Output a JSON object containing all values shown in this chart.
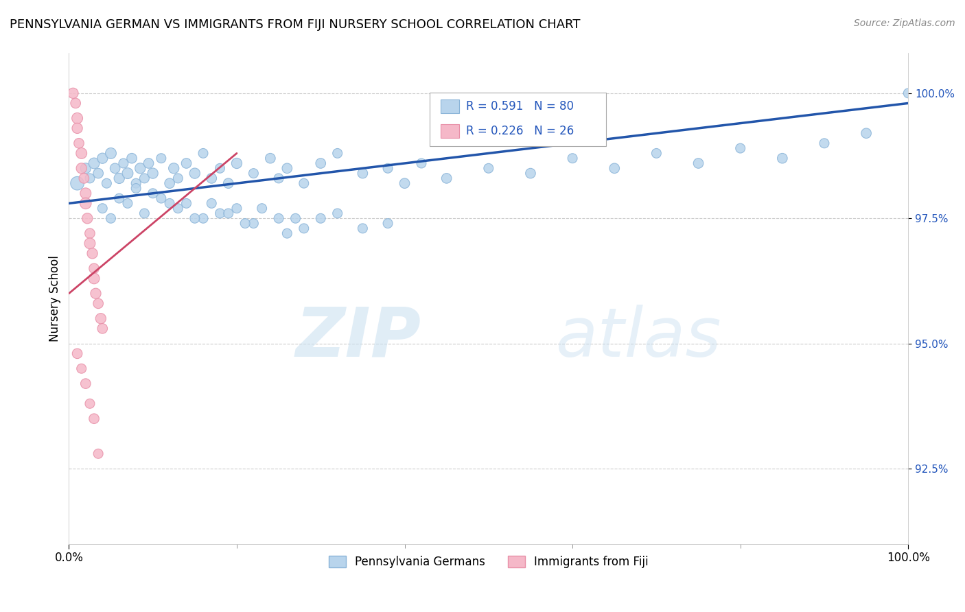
{
  "title": "PENNSYLVANIA GERMAN VS IMMIGRANTS FROM FIJI NURSERY SCHOOL CORRELATION CHART",
  "source": "Source: ZipAtlas.com",
  "ylabel": "Nursery School",
  "xmin": 0.0,
  "xmax": 100.0,
  "ymin": 91.0,
  "ymax": 100.8,
  "yticks": [
    92.5,
    95.0,
    97.5,
    100.0
  ],
  "ytick_labels": [
    "92.5%",
    "95.0%",
    "97.5%",
    "100.0%"
  ],
  "xtick_labels": [
    "0.0%",
    "100.0%"
  ],
  "blue_color": "#b8d4ec",
  "blue_edge": "#8ab4d8",
  "pink_color": "#f5b8c8",
  "pink_edge": "#e890a8",
  "trend_blue": "#2255aa",
  "trend_pink": "#cc4466",
  "R_blue": 0.591,
  "N_blue": 80,
  "R_pink": 0.226,
  "N_pink": 26,
  "blue_points_x": [
    1.0,
    2.0,
    2.5,
    3.0,
    3.5,
    4.0,
    4.5,
    5.0,
    5.5,
    6.0,
    6.5,
    7.0,
    7.5,
    8.0,
    8.5,
    9.0,
    9.5,
    10.0,
    11.0,
    12.0,
    12.5,
    13.0,
    14.0,
    15.0,
    16.0,
    17.0,
    18.0,
    19.0,
    20.0,
    22.0,
    24.0,
    25.0,
    26.0,
    28.0,
    30.0,
    32.0,
    35.0,
    38.0,
    40.0,
    42.0,
    45.0,
    50.0,
    55.0,
    60.0,
    65.0,
    70.0,
    75.0,
    80.0,
    85.0,
    90.0,
    95.0,
    100.0,
    14.0,
    16.0,
    18.0,
    22.0,
    26.0,
    30.0,
    35.0,
    20.0,
    25.0,
    28.0,
    32.0,
    38.0,
    10.0,
    12.0,
    8.0,
    6.0,
    4.0,
    5.0,
    7.0,
    9.0,
    11.0,
    13.0,
    15.0,
    17.0,
    19.0,
    21.0,
    23.0,
    27.0
  ],
  "blue_points_y": [
    98.2,
    98.5,
    98.3,
    98.6,
    98.4,
    98.7,
    98.2,
    98.8,
    98.5,
    98.3,
    98.6,
    98.4,
    98.7,
    98.2,
    98.5,
    98.3,
    98.6,
    98.4,
    98.7,
    98.2,
    98.5,
    98.3,
    98.6,
    98.4,
    98.8,
    98.3,
    98.5,
    98.2,
    98.6,
    98.4,
    98.7,
    98.3,
    98.5,
    98.2,
    98.6,
    98.8,
    98.4,
    98.5,
    98.2,
    98.6,
    98.3,
    98.5,
    98.4,
    98.7,
    98.5,
    98.8,
    98.6,
    98.9,
    98.7,
    99.0,
    99.2,
    100.0,
    97.8,
    97.5,
    97.6,
    97.4,
    97.2,
    97.5,
    97.3,
    97.7,
    97.5,
    97.3,
    97.6,
    97.4,
    98.0,
    97.8,
    98.1,
    97.9,
    97.7,
    97.5,
    97.8,
    97.6,
    97.9,
    97.7,
    97.5,
    97.8,
    97.6,
    97.4,
    97.7,
    97.5
  ],
  "blue_sizes": [
    200,
    120,
    100,
    130,
    110,
    120,
    100,
    130,
    110,
    120,
    100,
    130,
    110,
    100,
    120,
    100,
    110,
    120,
    100,
    110,
    120,
    100,
    110,
    120,
    100,
    110,
    100,
    110,
    120,
    100,
    110,
    100,
    110,
    100,
    110,
    100,
    110,
    100,
    110,
    100,
    110,
    100,
    110,
    100,
    110,
    100,
    110,
    100,
    110,
    100,
    110,
    100,
    100,
    100,
    100,
    100,
    100,
    100,
    100,
    100,
    100,
    100,
    100,
    100,
    100,
    100,
    100,
    100,
    100,
    100,
    100,
    100,
    100,
    100,
    100,
    100,
    100,
    100,
    100,
    100
  ],
  "pink_points_x": [
    0.5,
    0.8,
    1.0,
    1.0,
    1.2,
    1.5,
    1.5,
    1.8,
    2.0,
    2.0,
    2.2,
    2.5,
    2.5,
    2.8,
    3.0,
    3.0,
    3.2,
    3.5,
    3.8,
    4.0,
    1.0,
    1.5,
    2.0,
    2.5,
    3.0,
    3.5
  ],
  "pink_points_y": [
    100.0,
    99.8,
    99.5,
    99.3,
    99.0,
    98.8,
    98.5,
    98.3,
    98.0,
    97.8,
    97.5,
    97.2,
    97.0,
    96.8,
    96.5,
    96.3,
    96.0,
    95.8,
    95.5,
    95.3,
    94.8,
    94.5,
    94.2,
    93.8,
    93.5,
    92.8
  ],
  "pink_sizes": [
    120,
    110,
    130,
    120,
    110,
    130,
    120,
    110,
    130,
    140,
    120,
    110,
    130,
    120,
    110,
    130,
    120,
    110,
    120,
    110,
    110,
    100,
    110,
    100,
    110,
    100
  ],
  "watermark_zip": "ZIP",
  "watermark_atlas": "atlas",
  "blue_trend_x": [
    0,
    100
  ],
  "blue_trend_y": [
    97.8,
    99.8
  ],
  "pink_trend_x": [
    0,
    20
  ],
  "pink_trend_y": [
    96.0,
    98.8
  ]
}
